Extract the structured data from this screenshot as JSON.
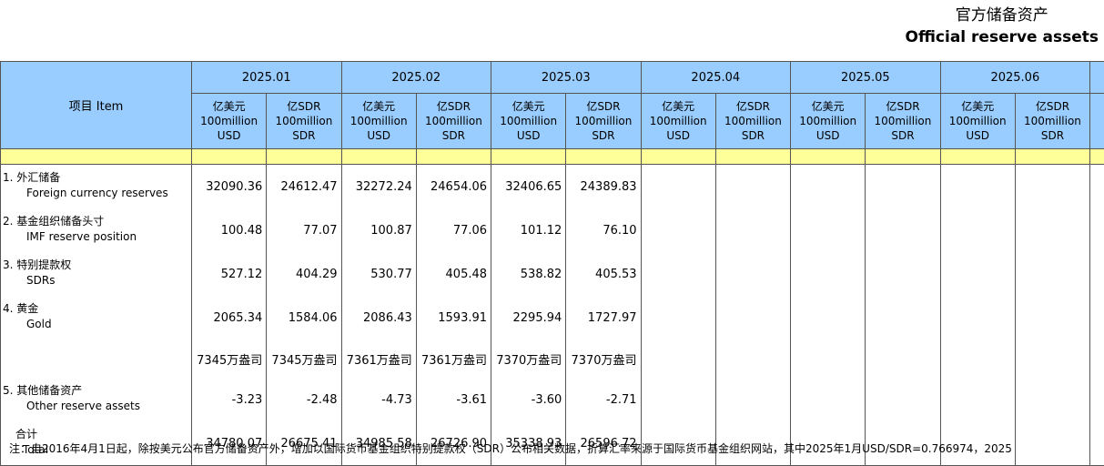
{
  "header": {
    "title_cn": "官方储备资产",
    "title_en": "Official reserve assets"
  },
  "table": {
    "item_header": "项目  Item",
    "months": [
      "2025.01",
      "2025.02",
      "2025.03",
      "2025.04",
      "2025.05",
      "2025.06"
    ],
    "units": [
      [
        "亿美元",
        "100million",
        "USD"
      ],
      [
        "亿SDR",
        "100million",
        "SDR"
      ]
    ],
    "rows": [
      {
        "label_cn": "1.  外汇储备",
        "label_en": "Foreign currency reserves",
        "values": [
          "32090.36",
          "24612.47",
          "32272.24",
          "24654.06",
          "32406.65",
          "24389.83"
        ]
      },
      {
        "label_cn": "2.  基金组织储备头寸",
        "label_en": "IMF reserve position",
        "values": [
          "100.48",
          "77.07",
          "100.87",
          "77.06",
          "101.12",
          "76.10"
        ]
      },
      {
        "label_cn": "3.  特别提款权",
        "label_en": "SDRs",
        "values": [
          "527.12",
          "404.29",
          "530.77",
          "405.48",
          "538.82",
          "405.53"
        ]
      },
      {
        "label_cn": "4.  黄金",
        "label_en": "Gold",
        "values": [
          "2065.34",
          "1584.06",
          "2086.43",
          "1593.91",
          "2295.94",
          "1727.97"
        ]
      },
      {
        "values": [
          "7345万盎司",
          "7345万盎司",
          "7361万盎司",
          "7361万盎司",
          "7370万盎司",
          "7370万盎司"
        ]
      },
      {
        "label_cn": "5.  其他储备资产",
        "label_en": "Other reserve assets",
        "values": [
          "-3.23",
          "-2.48",
          "-4.73",
          "-3.61",
          "-3.60",
          "-2.71"
        ]
      },
      {
        "label_cn": "合计",
        "label_en": "Total",
        "values": [
          "34780.07",
          "26675.41",
          "34985.58",
          "26726.90",
          "35338.93",
          "26596.72"
        ]
      }
    ]
  },
  "footnote": "注：自2016年4月1日起，除按美元公布官方储备资产外，增加以国际货币基金组织特别提款权（SDR）公布相关数据，折算汇率来源于国际货币基金组织网站，其中2025年1月USD/SDR=0.766974，2025"
}
